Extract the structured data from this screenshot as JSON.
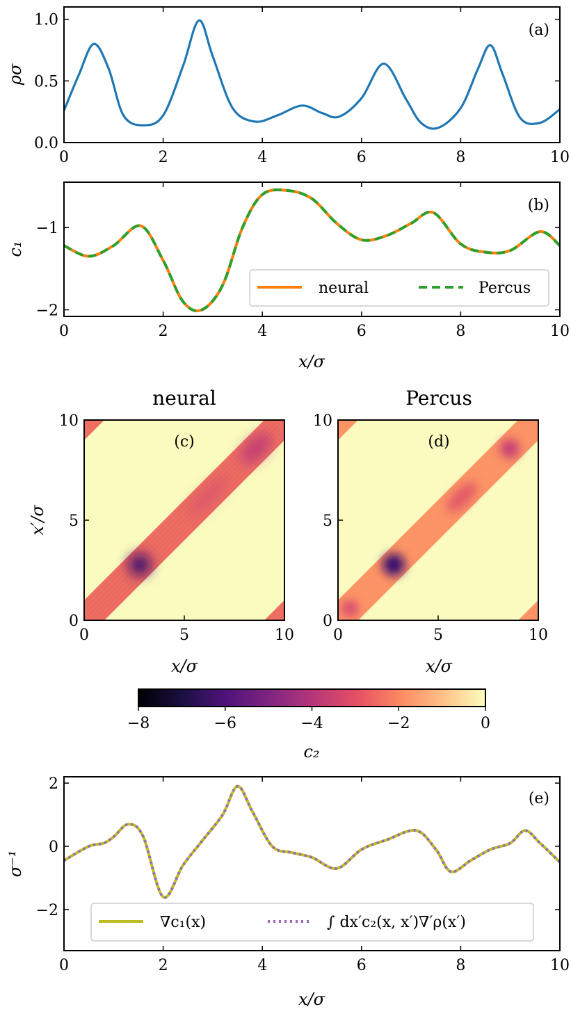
{
  "chart_data": [
    {
      "panel": "(a)",
      "type": "line",
      "xlabel": "",
      "ylabel": "ρσ",
      "xlim": [
        0,
        10
      ],
      "ylim": [
        0,
        1.1
      ],
      "xticks": [
        "0",
        "2",
        "4",
        "6",
        "8",
        "10"
      ],
      "yticks": [
        "0.0",
        "0.5",
        "1.0"
      ],
      "series": [
        {
          "name": "ρ",
          "color": "#1f77b4",
          "x": [
            0,
            0.3,
            0.6,
            0.9,
            1.2,
            1.6,
            2.0,
            2.4,
            2.72,
            3.0,
            3.4,
            3.85,
            4.3,
            4.8,
            5.2,
            5.55,
            6.0,
            6.45,
            6.9,
            7.2,
            7.55,
            8.0,
            8.35,
            8.6,
            8.85,
            9.2,
            9.6,
            10.0
          ],
          "y": [
            0.26,
            0.55,
            0.8,
            0.6,
            0.22,
            0.14,
            0.22,
            0.62,
            0.99,
            0.7,
            0.28,
            0.17,
            0.22,
            0.3,
            0.24,
            0.21,
            0.36,
            0.64,
            0.35,
            0.16,
            0.12,
            0.28,
            0.6,
            0.79,
            0.55,
            0.2,
            0.16,
            0.27
          ]
        }
      ]
    },
    {
      "panel": "(b)",
      "type": "line",
      "xlabel": "x/σ",
      "ylabel": "c₁",
      "xlim": [
        0,
        10
      ],
      "ylim": [
        -2.08,
        -0.45
      ],
      "xticks": [
        "0",
        "2",
        "4",
        "6",
        "8",
        "10"
      ],
      "yticks": [
        "−2",
        "−1"
      ],
      "legend": {
        "placement": "lower-right",
        "entries": [
          "neural",
          "Percus"
        ]
      },
      "series": [
        {
          "name": "neural",
          "color": "#ff7f0e",
          "x": [
            0,
            0.5,
            1.0,
            1.55,
            2.0,
            2.4,
            2.78,
            3.2,
            3.6,
            4.0,
            4.5,
            5.0,
            5.5,
            6.0,
            6.5,
            7.0,
            7.45,
            8.0,
            8.5,
            9.0,
            9.6,
            10.0
          ],
          "y": [
            -1.22,
            -1.35,
            -1.22,
            -0.98,
            -1.4,
            -1.9,
            -2.0,
            -1.7,
            -1.0,
            -0.6,
            -0.55,
            -0.65,
            -0.95,
            -1.15,
            -1.1,
            -0.95,
            -0.82,
            -1.2,
            -1.3,
            -1.28,
            -1.05,
            -1.22
          ]
        },
        {
          "name": "Percus",
          "color": "#2ca02c",
          "x": [
            0,
            0.5,
            1.0,
            1.55,
            2.0,
            2.4,
            2.78,
            3.2,
            3.6,
            4.0,
            4.5,
            5.0,
            5.5,
            6.0,
            6.5,
            7.0,
            7.45,
            8.0,
            8.5,
            9.0,
            9.6,
            10.0
          ],
          "y": [
            -1.22,
            -1.35,
            -1.22,
            -0.98,
            -1.4,
            -1.9,
            -2.0,
            -1.7,
            -1.0,
            -0.6,
            -0.55,
            -0.65,
            -0.95,
            -1.15,
            -1.1,
            -0.95,
            -0.82,
            -1.2,
            -1.3,
            -1.28,
            -1.05,
            -1.22
          ]
        }
      ]
    },
    {
      "panel": "(c)",
      "type": "heatmap",
      "title": "neural",
      "xlabel": "x/σ",
      "ylabel": "x′/σ",
      "xlim": [
        0,
        10
      ],
      "ylim": [
        0,
        10
      ],
      "xticks": [
        "0",
        "5",
        "10"
      ],
      "yticks": [
        "0",
        "5",
        "10"
      ],
      "band_halfwidth": 1,
      "dark_spots": [
        {
          "x": 2.8,
          "y": 2.8,
          "c2": -6
        },
        {
          "x": 8.6,
          "y": 8.6,
          "c2": -3.5
        }
      ]
    },
    {
      "panel": "(d)",
      "type": "heatmap",
      "title": "Percus",
      "xlabel": "x/σ",
      "ylabel": "",
      "xlim": [
        0,
        10
      ],
      "ylim": [
        0,
        10
      ],
      "xticks": [
        "0",
        "5",
        "10"
      ],
      "yticks": [
        "0",
        "5",
        "10"
      ],
      "band_halfwidth": 1,
      "dark_spots": [
        {
          "x": 0.6,
          "y": 0.6,
          "c2": -3.5
        },
        {
          "x": 2.8,
          "y": 2.8,
          "c2": -6
        },
        {
          "x": 6.2,
          "y": 6.2,
          "c2": -3
        },
        {
          "x": 8.6,
          "y": 8.6,
          "c2": -3.5
        }
      ]
    },
    {
      "panel": "colorbar",
      "type": "colorbar",
      "label": "c₂",
      "range": [
        -8,
        0
      ],
      "ticks": [
        "−8",
        "−6",
        "−4",
        "−2",
        "0"
      ]
    },
    {
      "panel": "(e)",
      "type": "line",
      "xlabel": "x/σ",
      "ylabel": "σ⁻¹",
      "xlim": [
        0,
        10
      ],
      "ylim": [
        -3.3,
        2.2
      ],
      "xticks": [
        "0",
        "2",
        "4",
        "6",
        "8",
        "10"
      ],
      "yticks": [
        "−2",
        "0",
        "2"
      ],
      "legend": {
        "placement": "lower-center",
        "entries": [
          "∇c₁(x)",
          "∫ dx′c₂(x, x′)∇′ρ(x′)"
        ]
      },
      "series": [
        {
          "name": "∇c₁(x)",
          "color": "#bcbd22",
          "x": [
            0,
            0.5,
            0.8,
            1.0,
            1.3,
            1.6,
            2.0,
            2.4,
            2.8,
            3.2,
            3.5,
            3.8,
            4.2,
            4.6,
            5.0,
            5.5,
            6.0,
            6.5,
            7.1,
            7.5,
            7.8,
            8.2,
            8.6,
            9.0,
            9.3,
            9.6,
            10.0
          ],
          "y": [
            -0.45,
            0.0,
            0.1,
            0.3,
            0.7,
            0.3,
            -1.6,
            -0.6,
            0.2,
            1.0,
            1.9,
            1.1,
            0.0,
            -0.2,
            -0.35,
            -0.7,
            -0.1,
            0.2,
            0.5,
            -0.1,
            -0.8,
            -0.45,
            -0.1,
            0.1,
            0.5,
            0.1,
            -0.5
          ]
        },
        {
          "name": "∫ dx′c₂(x, x′)∇′ρ(x′)",
          "color": "#9467bd",
          "x": [
            0,
            0.5,
            0.8,
            1.0,
            1.3,
            1.6,
            2.0,
            2.4,
            2.8,
            3.2,
            3.5,
            3.8,
            4.2,
            4.6,
            5.0,
            5.5,
            6.0,
            6.5,
            7.1,
            7.5,
            7.8,
            8.2,
            8.6,
            9.0,
            9.3,
            9.6,
            10.0
          ],
          "y": [
            -0.45,
            0.0,
            0.1,
            0.3,
            0.7,
            0.3,
            -1.6,
            -0.6,
            0.2,
            1.0,
            1.9,
            1.1,
            0.0,
            -0.2,
            -0.35,
            -0.7,
            -0.1,
            0.2,
            0.5,
            -0.1,
            -0.8,
            -0.45,
            -0.1,
            0.1,
            0.5,
            0.1,
            -0.5
          ]
        }
      ]
    }
  ]
}
